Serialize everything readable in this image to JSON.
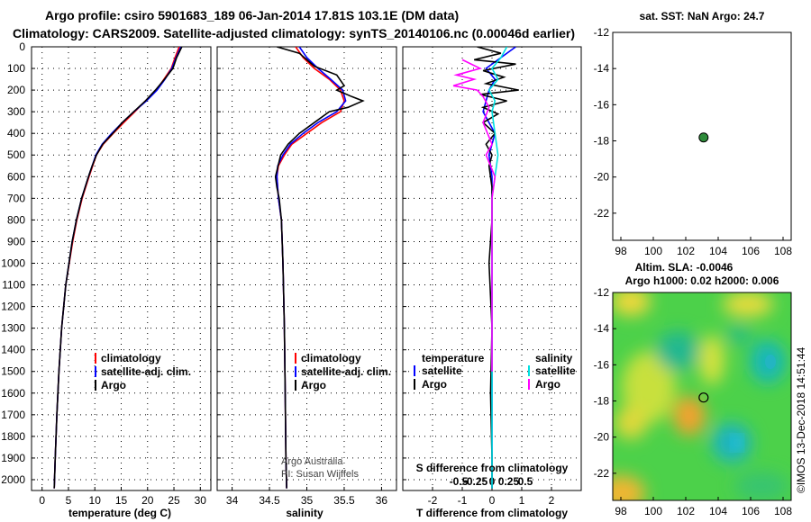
{
  "title_line1": "Argo profile: csiro 5901683_189 06-Jan-2014 17.81S 103.1E (DM data)",
  "title_line2": "Climatology: CARS2009. Satellite-adjusted climatology: synTS_20140106.nc (0.00046d earlier)",
  "colors": {
    "climatology": "#ff0000",
    "satellite": "#0000ff",
    "argo": "#000000",
    "sat_temp": "#0000ff",
    "sat_sal": "#00e0e0",
    "argo_sal": "#ff00ff",
    "marker": "#2e8b3a"
  },
  "chart_data": [
    {
      "id": "temperature",
      "type": "line",
      "xlabel": "temperature (deg C)",
      "ylabel": "",
      "xlim": [
        -2,
        32
      ],
      "ylim": [
        2050,
        0
      ],
      "xticks": [
        0,
        5,
        10,
        15,
        20,
        25,
        30
      ],
      "yticks": [
        0,
        100,
        200,
        300,
        400,
        500,
        600,
        700,
        800,
        900,
        1000,
        1100,
        1200,
        1300,
        1400,
        1500,
        1600,
        1700,
        1800,
        1900,
        2000
      ],
      "legend": [
        "climatology",
        "satellite-adj. clim.",
        "Argo"
      ],
      "series": [
        {
          "name": "climatology",
          "color": "#ff0000",
          "x": [
            26,
            25.2,
            24.5,
            23.1,
            21.7,
            19.6,
            17.6,
            15.5,
            13.5,
            11.6,
            10.3,
            9.6,
            8.9,
            7.6,
            6.6,
            5.8,
            4.5,
            3.7,
            3.2,
            2.8,
            2.5,
            2.3
          ],
          "y": [
            0,
            50,
            100,
            150,
            200,
            250,
            300,
            350,
            400,
            450,
            500,
            550,
            600,
            700,
            800,
            900,
            1100,
            1300,
            1500,
            1700,
            1900,
            2040
          ]
        },
        {
          "name": "satellite-adj. clim.",
          "color": "#0000ff",
          "x": [
            26.3,
            25.4,
            24.6,
            23.3,
            21.8,
            19.8,
            17.4,
            15.2,
            13.2,
            11.4,
            10.2,
            9.5,
            8.8,
            7.5,
            6.5,
            5.7,
            4.5,
            3.7,
            3.2,
            2.8,
            2.5,
            2.3
          ],
          "y": [
            0,
            50,
            100,
            150,
            200,
            250,
            300,
            350,
            400,
            450,
            500,
            550,
            600,
            700,
            800,
            900,
            1100,
            1300,
            1500,
            1700,
            1900,
            2040
          ]
        },
        {
          "name": "Argo",
          "color": "#000000",
          "x": [
            26.5,
            25.5,
            24.8,
            23.2,
            21.5,
            19.6,
            17.4,
            15.2,
            13.4,
            11.5,
            10.3,
            9.5,
            8.8,
            7.5,
            6.5,
            5.7,
            4.5,
            3.7,
            3.2,
            2.8,
            2.5,
            2.3
          ],
          "y": [
            0,
            50,
            100,
            150,
            200,
            250,
            300,
            350,
            400,
            450,
            500,
            550,
            600,
            700,
            800,
            900,
            1100,
            1300,
            1500,
            1700,
            1900,
            2040
          ]
        }
      ]
    },
    {
      "id": "salinity",
      "type": "line",
      "xlabel": "salinity",
      "xlim": [
        33.8,
        36.2
      ],
      "ylim": [
        2050,
        0
      ],
      "xticks": [
        34,
        34.5,
        35,
        35.5,
        36
      ],
      "legend": [
        "climatology",
        "satellite-adj. clim.",
        "Argo"
      ],
      "credit_line1": "Argo Australia",
      "credit_line2": "PI: Susan Wijffels",
      "series": [
        {
          "name": "climatology",
          "color": "#ff0000",
          "x": [
            34.85,
            34.95,
            35.1,
            35.3,
            35.45,
            35.5,
            35.45,
            35.2,
            35.0,
            34.8,
            34.7,
            34.62,
            34.6,
            34.62,
            34.66,
            34.68,
            34.7,
            34.71,
            34.72,
            34.73
          ],
          "y": [
            0,
            50,
            100,
            150,
            200,
            250,
            300,
            350,
            400,
            450,
            500,
            550,
            600,
            700,
            800,
            1000,
            1300,
            1600,
            1900,
            2040
          ]
        },
        {
          "name": "satellite-adj. clim.",
          "color": "#0000ff",
          "x": [
            34.9,
            35.0,
            35.15,
            35.32,
            35.48,
            35.52,
            35.4,
            35.15,
            34.95,
            34.78,
            34.68,
            34.61,
            34.6,
            34.62,
            34.66,
            34.68,
            34.7,
            34.71,
            34.72,
            34.73
          ],
          "y": [
            0,
            50,
            100,
            150,
            200,
            250,
            300,
            350,
            400,
            450,
            500,
            550,
            600,
            700,
            800,
            1000,
            1300,
            1600,
            1900,
            2040
          ]
        },
        {
          "name": "Argo",
          "color": "#000000",
          "x": [
            34.6,
            34.9,
            35.0,
            35.1,
            35.4,
            35.5,
            35.4,
            35.6,
            35.75,
            35.55,
            35.3,
            35.1,
            34.9,
            34.75,
            34.65,
            34.58,
            34.6,
            34.63,
            34.66,
            34.68,
            34.7,
            34.71,
            34.72,
            34.73
          ],
          "y": [
            0,
            30,
            60,
            90,
            130,
            180,
            200,
            230,
            250,
            280,
            300,
            350,
            400,
            450,
            500,
            600,
            650,
            700,
            800,
            1000,
            1300,
            1600,
            1900,
            2040
          ]
        }
      ]
    },
    {
      "id": "difference",
      "type": "line",
      "xlabel": "T difference from climatology",
      "sublabel": "S difference from climatology",
      "xlim": [
        -3,
        3
      ],
      "ylim": [
        2050,
        0
      ],
      "xticks": [
        -2,
        -1,
        0,
        1,
        2
      ],
      "xtick_labels": [
        "-2",
        "-1",
        "0",
        "1",
        "2"
      ],
      "sticks": [
        -0.5,
        -0.25,
        0,
        0.25,
        0.5
      ],
      "stick_labels": [
        "-0.5",
        "-0.25",
        "0",
        "0.25",
        "0.5"
      ],
      "legend_left_title": "temperature",
      "legend_right_title": "salinity",
      "legend_left": [
        "satellite",
        "Argo"
      ],
      "legend_right": [
        "satellite",
        "Argo"
      ],
      "series": [
        {
          "name": "satellite T",
          "color": "#0000ff",
          "x": [
            0.8,
            0.3,
            -0.2,
            0.1,
            -0.1,
            -0.2,
            -0.3,
            -0.1,
            0.1,
            0.0,
            -0.1,
            0.0,
            0.0,
            0.0,
            0.0,
            0.0
          ],
          "y": [
            0,
            50,
            100,
            150,
            200,
            250,
            300,
            350,
            400,
            450,
            500,
            600,
            800,
            1000,
            1500,
            2040
          ]
        },
        {
          "name": "Argo T",
          "color": "#000000",
          "x": [
            -0.5,
            0.3,
            -0.6,
            0.8,
            -0.3,
            0.4,
            -0.2,
            0.9,
            -0.4,
            0.5,
            -0.3,
            0.2,
            -0.3,
            0.1,
            -0.2,
            0.0,
            -0.1,
            0.0,
            0.0,
            -0.1,
            0.0,
            -0.05,
            0.0,
            0.0
          ],
          "y": [
            0,
            30,
            60,
            80,
            110,
            140,
            170,
            200,
            220,
            250,
            280,
            310,
            350,
            400,
            450,
            500,
            550,
            650,
            800,
            1000,
            1300,
            1600,
            1900,
            2040
          ]
        },
        {
          "name": "satellite S",
          "color": "#00e0e0",
          "x": [
            0.5,
            0.3,
            0.0,
            0.2,
            -0.1,
            0.1,
            0.0,
            0.1,
            0.2,
            0.1,
            0.0,
            0.0,
            0.0,
            0.0
          ],
          "y": [
            0,
            50,
            100,
            150,
            200,
            250,
            300,
            400,
            500,
            600,
            700,
            1000,
            1500,
            2040
          ]
        },
        {
          "name": "Argo S",
          "color": "#ff00ff",
          "x": [
            -1.0,
            -0.4,
            -1.2,
            -0.6,
            -1.3,
            -0.5,
            -0.3,
            -0.1,
            -0.3,
            0.0,
            -0.2,
            0.1,
            0.0,
            0.0,
            0.0
          ],
          "y": [
            60,
            100,
            130,
            150,
            180,
            200,
            230,
            280,
            350,
            450,
            500,
            600,
            700,
            1000,
            1500
          ]
        }
      ]
    },
    {
      "id": "sst_map",
      "type": "scatter",
      "title": "sat. SST: NaN Argo: 24.7",
      "xlim": [
        97.5,
        108.5
      ],
      "ylim": [
        -23.5,
        -12
      ],
      "xticks": [
        98,
        100,
        102,
        104,
        106,
        108
      ],
      "yticks": [
        -12,
        -14,
        -16,
        -18,
        -20,
        -22
      ],
      "point": {
        "lon": 103.1,
        "lat": -17.81
      }
    },
    {
      "id": "sla_map",
      "type": "heatmap",
      "title_line1": "Altim. SLA: -0.0046",
      "title_line2": "Argo h1000: 0.02 h2000: 0.006",
      "xlim": [
        97.5,
        108.5
      ],
      "ylim": [
        -23.5,
        -12
      ],
      "xticks": [
        98,
        100,
        102,
        104,
        106,
        108
      ],
      "yticks": [
        -12,
        -14,
        -16,
        -18,
        -20,
        -22
      ],
      "point": {
        "lon": 103.1,
        "lat": -17.81
      },
      "stamp": "©IMOS 13-Dec-2018 14:51:44"
    }
  ]
}
